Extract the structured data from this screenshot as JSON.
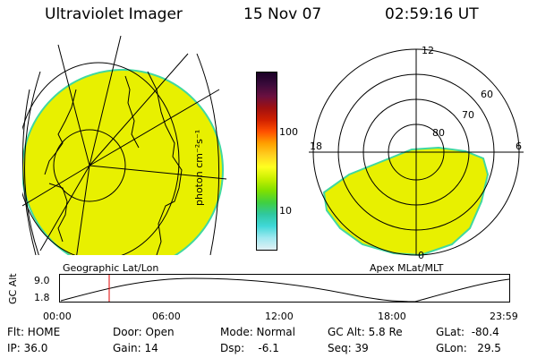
{
  "header": {
    "instrument": "Ultraviolet Imager",
    "date": "15 Nov 07",
    "time": "02:59:16 UT"
  },
  "colorbar": {
    "unit_label": "photon cm⁻²s⁻¹",
    "tick_labels": [
      "100",
      "10"
    ],
    "colors": [
      "#1a0026",
      "#3a0a3a",
      "#6a1040",
      "#a01010",
      "#d02000",
      "#ff5000",
      "#ffa000",
      "#ffd020",
      "#ffff20",
      "#c8f000",
      "#80e000",
      "#40d040",
      "#30c8a0",
      "#40d8d8",
      "#a0e8f0",
      "#e0f0f4"
    ]
  },
  "left_map": {
    "label": "Geographic Lat/Lon",
    "fill_color": "#e8f000",
    "edge_color": "#40d8a0"
  },
  "right_map": {
    "label": "Apex MLat/MLT",
    "mlt_labels": {
      "top": "12",
      "left": "18",
      "right": "6",
      "bottom": "0"
    },
    "lat_labels": [
      "60",
      "70",
      "80"
    ],
    "fill_color": "#e8f000"
  },
  "altitude_plot": {
    "ylabel": "GC Alt",
    "y_ticks": [
      "9.0",
      "1.8"
    ],
    "x_ticks": [
      "00:00",
      "06:00",
      "12:00",
      "18:00",
      "23:59"
    ],
    "marker_color": "#e00000"
  },
  "status": {
    "flt": "Flt: HOME",
    "ip": "IP: 36.0",
    "door": "Door: Open",
    "gain": "Gain: 14",
    "mode": "Mode: Normal",
    "dsp": "Dsp:    -6.1",
    "gc_alt": "GC Alt: 5.8 Re",
    "seq": "Seq: 39",
    "glat": "GLat:  -80.4",
    "glon": "GLon:   29.5"
  }
}
